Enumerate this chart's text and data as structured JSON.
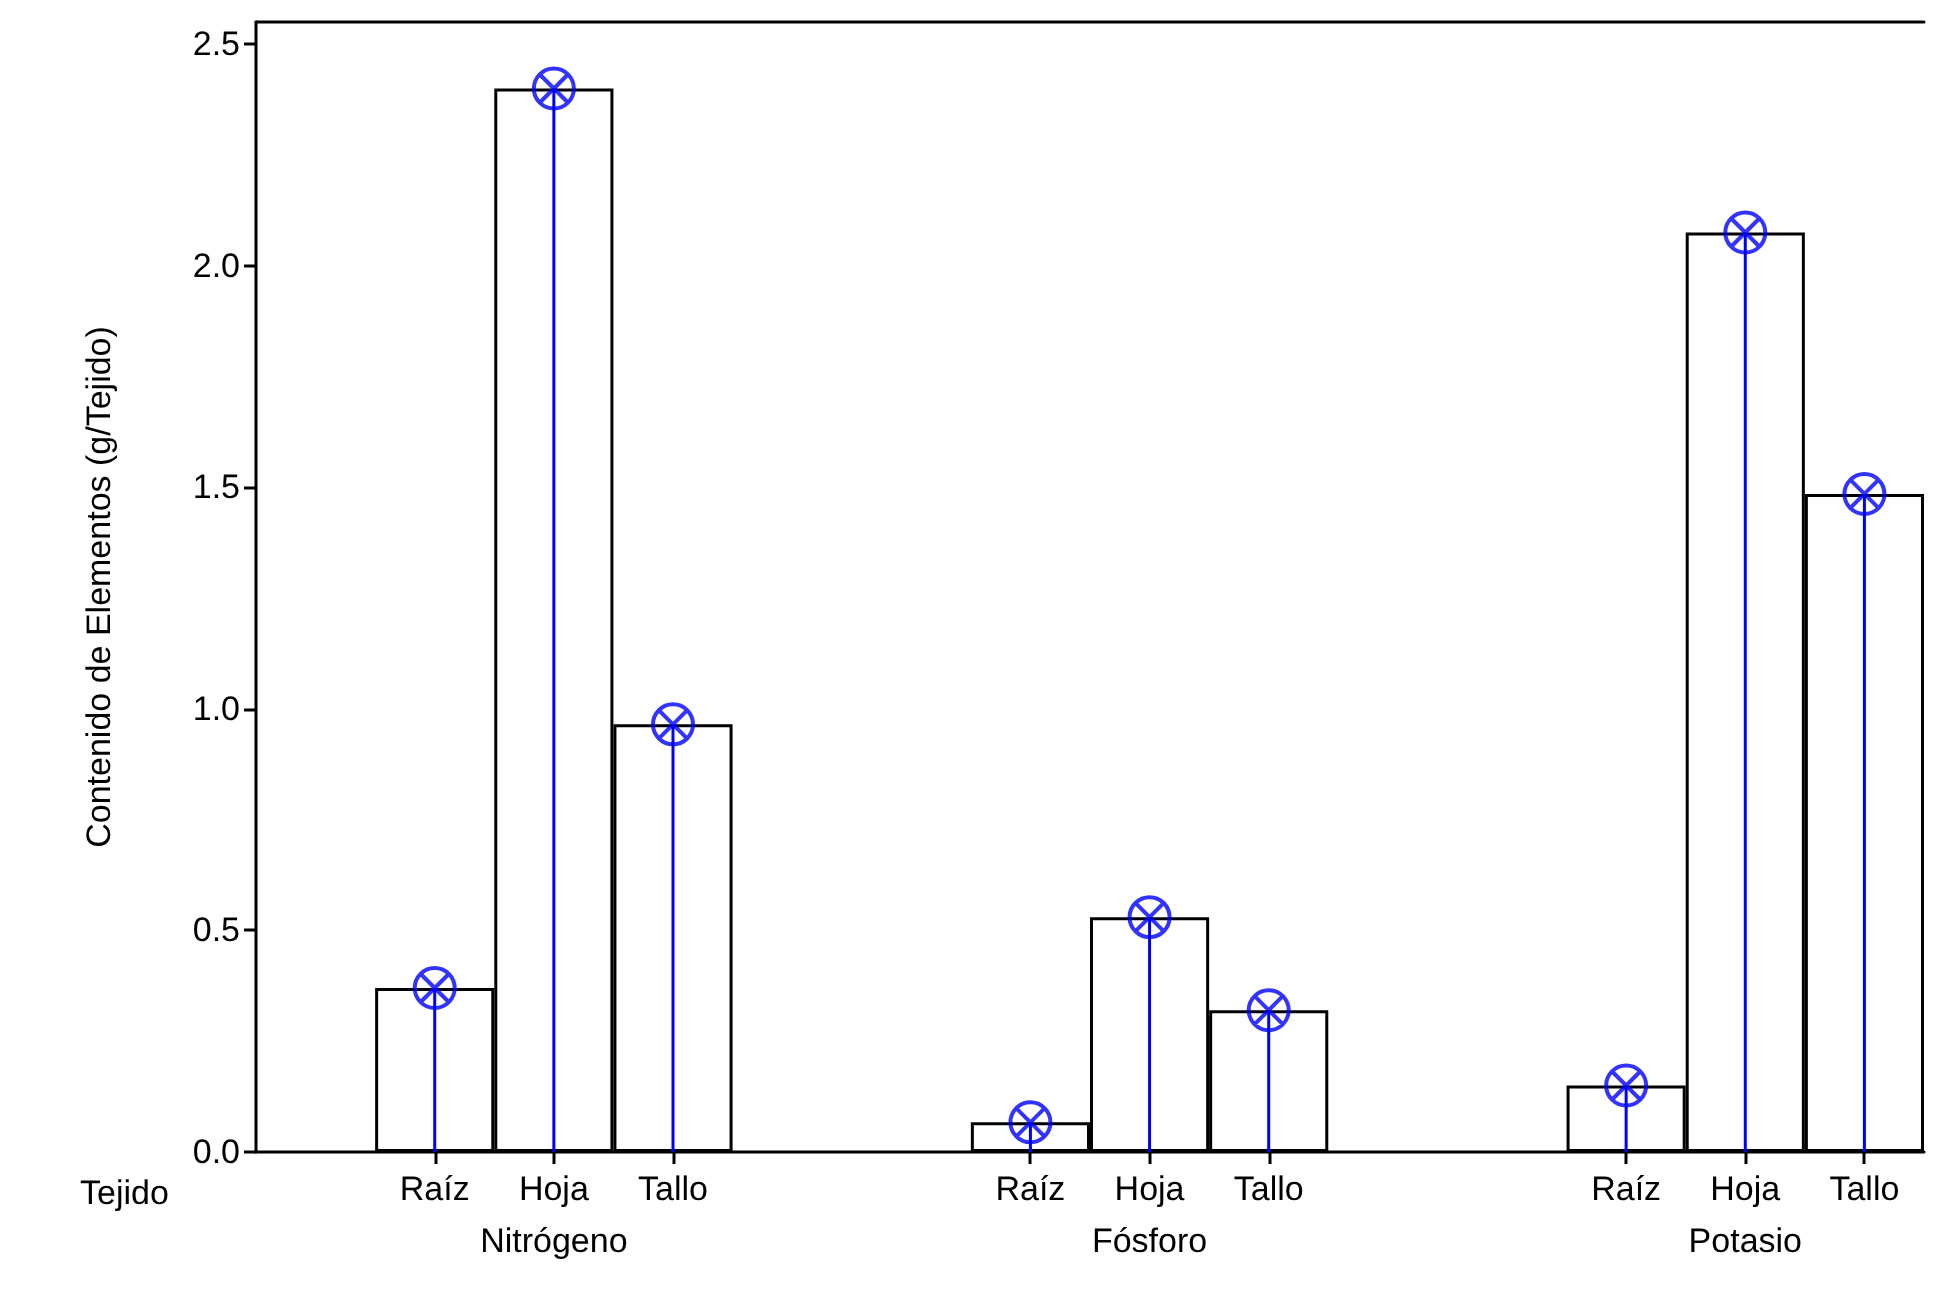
{
  "chart_data": {
    "type": "bar",
    "ylabel": "Contenido de Elementos (g/Tejido)",
    "xlabel": "Tejido",
    "categories": [
      null,
      "Raíz",
      "Hoja",
      "Tallo",
      null,
      null,
      "Raíz",
      "Hoja",
      "Tallo",
      null,
      null,
      "Raíz",
      "Hoja",
      "Tallo"
    ],
    "annotations": [
      "Nitrógeno",
      "Fósforo",
      "Potasio"
    ],
    "series": [
      {
        "color": "#ffffff",
        "values": [
          null,
          0.37,
          2.4,
          0.965,
          null,
          null,
          0.067,
          0.53,
          0.32,
          null,
          null,
          0.15,
          2.075,
          1.485
        ]
      },
      {
        "type": "lollipop",
        "color": "#0000ff",
        "values": [
          null,
          0.37,
          2.4,
          0.965,
          null,
          null,
          0.067,
          0.53,
          0.32,
          null,
          null,
          0.15,
          2.075,
          1.485
        ]
      }
    ],
    "ylim": [
      0,
      2.55
    ],
    "yticks": [
      {
        "value": 0,
        "label": "0.0"
      },
      {
        "value": 0.5,
        "label": "0.5"
      },
      {
        "value": 1,
        "label": "1.0"
      },
      {
        "value": 1.5,
        "label": "1.5"
      },
      {
        "value": 2,
        "label": "2.0"
      },
      {
        "value": 2.5,
        "label": "2.5"
      }
    ],
    "grid": false
  }
}
